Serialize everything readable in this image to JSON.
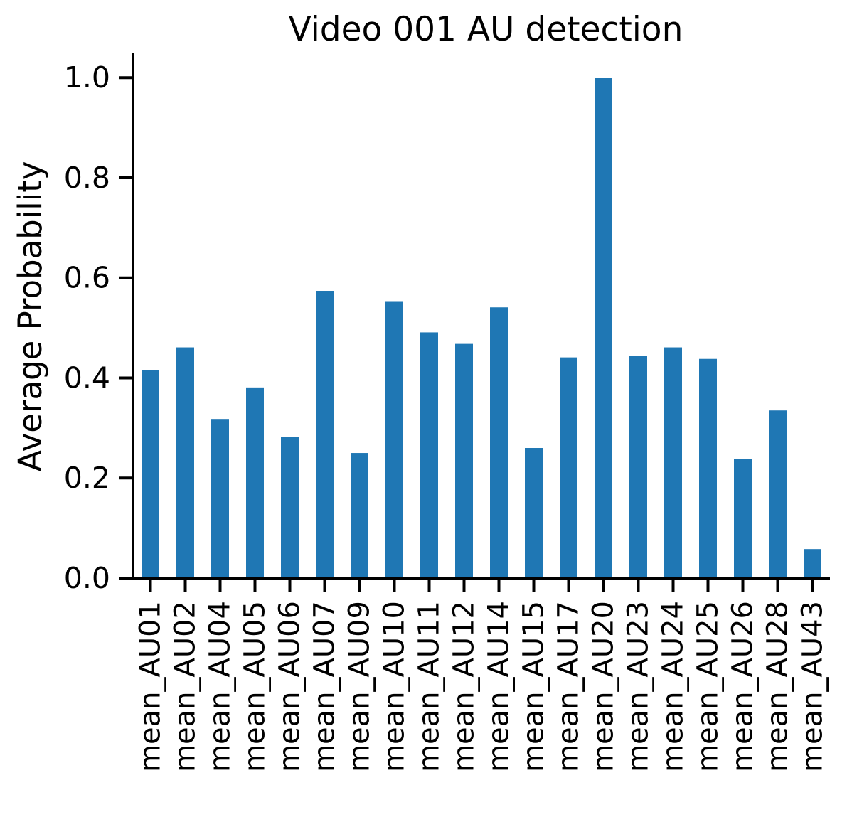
{
  "chart_data": {
    "type": "bar",
    "title": "Video 001 AU detection",
    "xlabel": "",
    "ylabel": "Average Probability",
    "categories": [
      "mean_AU01",
      "mean_AU02",
      "mean_AU04",
      "mean_AU05",
      "mean_AU06",
      "mean_AU07",
      "mean_AU09",
      "mean_AU10",
      "mean_AU11",
      "mean_AU12",
      "mean_AU14",
      "mean_AU15",
      "mean_AU17",
      "mean_AU20",
      "mean_AU23",
      "mean_AU24",
      "mean_AU25",
      "mean_AU26",
      "mean_AU28",
      "mean_AU43"
    ],
    "values": [
      0.415,
      0.461,
      0.318,
      0.381,
      0.282,
      0.574,
      0.25,
      0.552,
      0.491,
      0.468,
      0.541,
      0.26,
      0.441,
      1.0,
      0.444,
      0.461,
      0.438,
      0.238,
      0.335,
      0.058
    ],
    "ylim": [
      0,
      1.05
    ],
    "yticks": [
      0.0,
      0.2,
      0.4,
      0.6,
      0.8,
      1.0
    ],
    "ytick_labels": [
      "0.0",
      "0.2",
      "0.4",
      "0.6",
      "0.8",
      "1.0"
    ],
    "grid": false,
    "bar_color": "#1f77b4",
    "axis_color": "#000000"
  }
}
